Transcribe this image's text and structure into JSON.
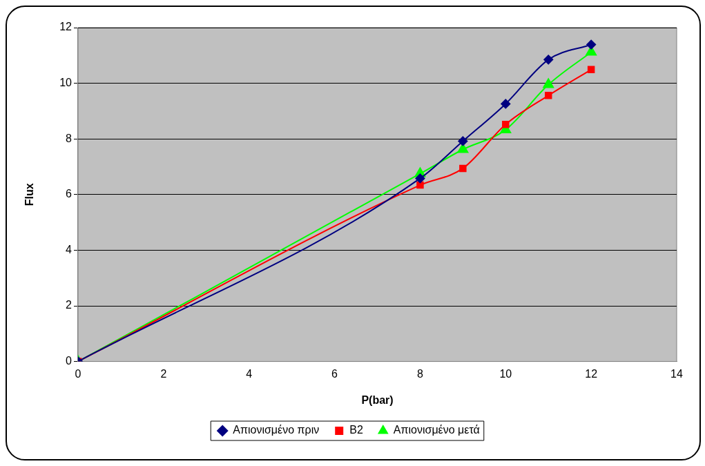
{
  "chart_data": {
    "type": "line",
    "xlabel": "P(bar)",
    "ylabel": "Flux",
    "x": [
      0,
      8,
      9,
      10,
      11,
      12
    ],
    "series": [
      {
        "name": "Απιονισμένο πριν",
        "color": "#000080",
        "marker": "diamond",
        "values": [
          0,
          6.58,
          7.92,
          9.26,
          10.85,
          11.39
        ]
      },
      {
        "name": "B2",
        "color": "#ff0000",
        "marker": "square",
        "values": [
          0,
          6.34,
          6.94,
          8.52,
          9.56,
          10.49
        ]
      },
      {
        "name": "Απιονισμένο μετά",
        "color": "#00ff00",
        "marker": "triangle",
        "values": [
          0,
          6.75,
          7.62,
          8.33,
          9.95,
          11.12
        ]
      }
    ],
    "xlim": [
      0,
      14
    ],
    "xticks": [
      0,
      2,
      4,
      6,
      8,
      10,
      12,
      14
    ],
    "ylim": [
      0,
      12
    ],
    "yticks": [
      0,
      2,
      4,
      6,
      8,
      10,
      12
    ],
    "grid": "y",
    "legend": "bottom"
  }
}
